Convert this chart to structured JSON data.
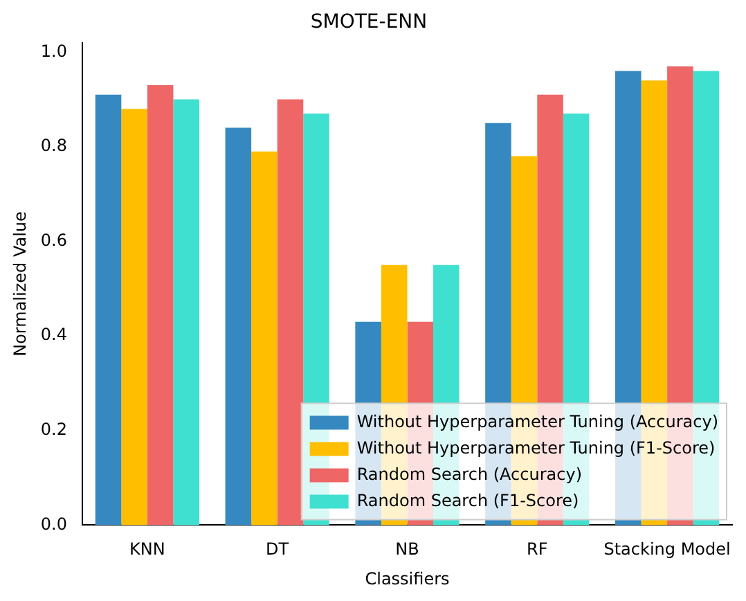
{
  "chart_data": {
    "type": "bar",
    "title": "SMOTE-ENN",
    "xlabel": "Classifiers",
    "ylabel": "Normalized Value",
    "categories": [
      "KNN",
      "DT",
      "NB",
      "RF",
      "Stacking Model"
    ],
    "series": [
      {
        "name": "Without Hyperparameter Tuning (Accuracy)",
        "color": "#3589c0",
        "values": [
          0.91,
          0.84,
          0.43,
          0.85,
          0.96
        ]
      },
      {
        "name": "Without Hyperparameter Tuning (F1-Score)",
        "color": "#ffbe00",
        "values": [
          0.88,
          0.79,
          0.55,
          0.78,
          0.94
        ]
      },
      {
        "name": "Random Search (Accuracy)",
        "color": "#ef6666",
        "values": [
          0.93,
          0.9,
          0.43,
          0.91,
          0.97
        ]
      },
      {
        "name": "Random Search (F1-Score)",
        "color": "#40e0d0",
        "values": [
          0.9,
          0.87,
          0.55,
          0.87,
          0.96
        ]
      }
    ],
    "ylim": [
      0,
      1.02
    ],
    "yticks": [
      {
        "value": 0,
        "label": "0.0"
      },
      {
        "value": 0.2,
        "label": "0.2"
      },
      {
        "value": 0.4,
        "label": "0.4"
      },
      {
        "value": 0.6,
        "label": "0.6"
      },
      {
        "value": 0.8,
        "label": "0.8"
      },
      {
        "value": 1,
        "label": "1.0"
      }
    ],
    "grid": false,
    "legend": "bottom right"
  }
}
